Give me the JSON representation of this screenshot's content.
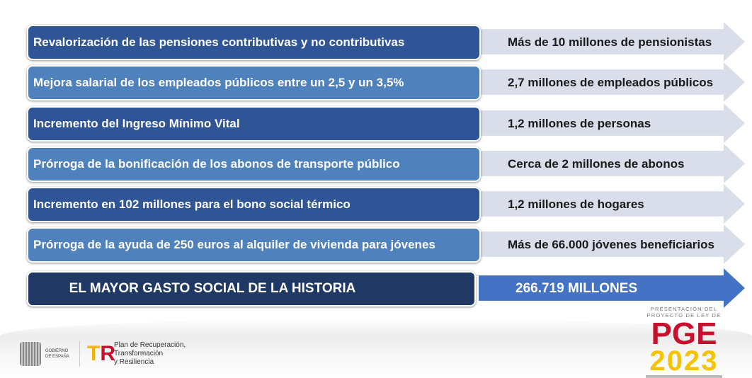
{
  "rows": [
    {
      "measure": "Revalorización de las pensiones contributivas y no contributivas",
      "beneficiaries": "Más de 10 millones de pensionistas",
      "style": "dark"
    },
    {
      "measure": "Mejora salarial de los empleados públicos entre un 2,5 y un 3,5%",
      "beneficiaries": "2,7 millones de empleados públicos",
      "style": "light"
    },
    {
      "measure": "Incremento del Ingreso Mínimo Vital",
      "beneficiaries": "1,2 millones de personas",
      "style": "dark"
    },
    {
      "measure": "Prórroga de la bonificación de los abonos de transporte público",
      "beneficiaries": "Cerca de 2 millones de abonos",
      "style": "light"
    },
    {
      "measure": "Incremento en 102 millones para el bono social térmico",
      "beneficiaries": "1,2 millones de hogares",
      "style": "dark"
    },
    {
      "measure": "Prórroga de la ayuda de 250 euros al alquiler de vivienda para jóvenes",
      "beneficiaries": "Más de 66.000 jóvenes beneficiarios",
      "style": "light"
    }
  ],
  "total": {
    "label": "EL MAYOR GASTO SOCIAL DE LA HISTORIA",
    "value": "266.719 MILLONES"
  },
  "footer": {
    "gobierno": "GOBIERNO DE ESPAÑA",
    "plan": [
      "Plan de Recuperación,",
      "Transformación",
      "y Resiliencia"
    ],
    "pge_pre": [
      "PRESENTACIÓN DEL",
      "PROYECTO DE LEY DE"
    ],
    "pge": "PGE",
    "year": "2023"
  },
  "colors": {
    "dark": "#2f5597",
    "light": "#4f81bd",
    "navy": "#1f3864",
    "arrow": "#d9deea",
    "arrow_total": "#4472c4",
    "red": "#c8102e",
    "yellow": "#f4c400"
  }
}
